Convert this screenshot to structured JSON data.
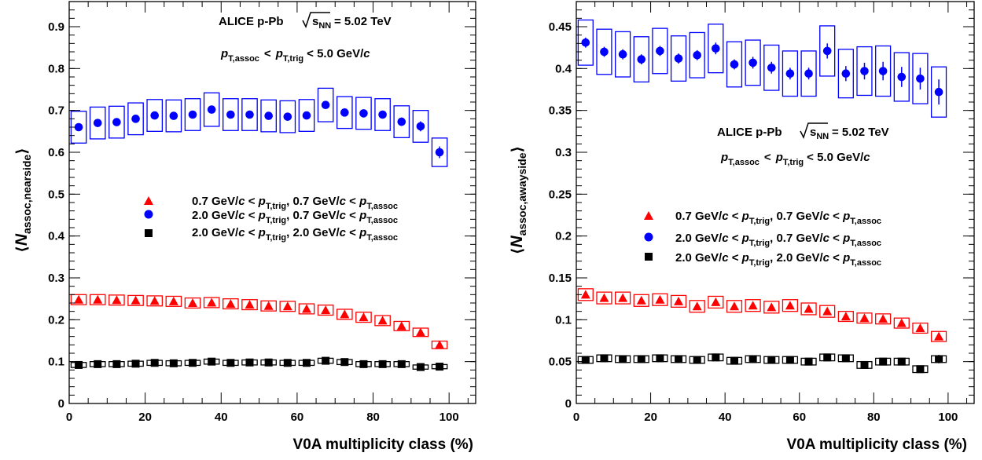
{
  "chart_data": [
    {
      "type": "scatter",
      "xlabel": "V0A multiplicity class (%)",
      "ylabel": "⟨N_assoc,nearside⟩",
      "ylabel_parts": {
        "main": "N",
        "sub": "assoc,nearside"
      },
      "xlim": [
        0,
        107
      ],
      "ylim": [
        0,
        0.96
      ],
      "xticks": [
        0,
        20,
        40,
        60,
        80,
        100
      ],
      "xtick_labels": [
        "0",
        "20",
        "40",
        "60",
        "80",
        "100"
      ],
      "yticks": [
        0,
        0.1,
        0.2,
        0.3,
        0.4,
        0.5,
        0.6,
        0.7,
        0.8,
        0.9
      ],
      "ytick_labels": [
        "0",
        "0.1",
        "0.2",
        "0.3",
        "0.4",
        "0.5",
        "0.6",
        "0.7",
        "0.8",
        "0.9"
      ],
      "annotation": {
        "experiment": "ALICE p-Pb",
        "energy_value": "= 5.02 TeV",
        "sqrt_s": "s",
        "sqrt_s_sub": "NN",
        "range_p1": "p",
        "range_p1_sub": "T,assoc",
        "range_lt": "<",
        "range_p2": "p",
        "range_p2_sub": "T,trig",
        "range_tail": "< 5.0 GeV/",
        "range_c": "c"
      },
      "legend": [
        {
          "a": "0.7 GeV/",
          "c1": "c",
          "b": " < ",
          "p": "p",
          "s1": "T,trig",
          "m": ", 0.7 GeV/",
          "c2": "c",
          "d": " < ",
          "p2": "p",
          "s2": "T,assoc"
        },
        {
          "a": "2.0 GeV/",
          "c1": "c",
          "b": " < ",
          "p": "p",
          "s1": "T,trig",
          "m": ", 0.7 GeV/",
          "c2": "c",
          "d": " < ",
          "p2": "p",
          "s2": "T,assoc"
        },
        {
          "a": "2.0 GeV/",
          "c1": "c",
          "b": " < ",
          "p": "p",
          "s1": "T,trig",
          "m": ", 2.0 GeV/",
          "c2": "c",
          "d": " < ",
          "p2": "p",
          "s2": "T,assoc"
        }
      ],
      "x": [
        2.5,
        7.5,
        12.5,
        17.5,
        22.5,
        27.5,
        32.5,
        37.5,
        42.5,
        47.5,
        52.5,
        57.5,
        62.5,
        67.5,
        72.5,
        77.5,
        82.5,
        87.5,
        92.5,
        97.5
      ],
      "series": [
        {
          "marker": "triangle",
          "color": "#ff0000",
          "values": [
            0.248,
            0.248,
            0.247,
            0.246,
            0.245,
            0.244,
            0.24,
            0.241,
            0.238,
            0.236,
            0.233,
            0.232,
            0.226,
            0.223,
            0.213,
            0.206,
            0.198,
            0.185,
            0.17,
            0.14
          ],
          "sys": [
            0.012,
            0.012,
            0.012,
            0.012,
            0.012,
            0.012,
            0.012,
            0.012,
            0.012,
            0.012,
            0.012,
            0.012,
            0.012,
            0.012,
            0.012,
            0.012,
            0.012,
            0.011,
            0.01,
            0.009
          ],
          "stat": [
            0.002,
            0.002,
            0.002,
            0.002,
            0.002,
            0.002,
            0.002,
            0.002,
            0.002,
            0.002,
            0.002,
            0.002,
            0.002,
            0.002,
            0.002,
            0.002,
            0.002,
            0.002,
            0.003,
            0.003
          ]
        },
        {
          "marker": "circle",
          "color": "#0000ff",
          "values": [
            0.66,
            0.67,
            0.672,
            0.68,
            0.688,
            0.687,
            0.69,
            0.702,
            0.69,
            0.69,
            0.687,
            0.685,
            0.688,
            0.713,
            0.695,
            0.693,
            0.69,
            0.673,
            0.662,
            0.6
          ],
          "sys": [
            0.038,
            0.038,
            0.038,
            0.038,
            0.038,
            0.038,
            0.038,
            0.04,
            0.038,
            0.038,
            0.038,
            0.038,
            0.038,
            0.04,
            0.038,
            0.038,
            0.038,
            0.038,
            0.038,
            0.034
          ],
          "stat": [
            0.006,
            0.006,
            0.006,
            0.006,
            0.006,
            0.006,
            0.006,
            0.007,
            0.006,
            0.006,
            0.006,
            0.006,
            0.006,
            0.008,
            0.007,
            0.007,
            0.008,
            0.01,
            0.012,
            0.014
          ]
        },
        {
          "marker": "square",
          "color": "#000000",
          "values": [
            0.092,
            0.094,
            0.094,
            0.095,
            0.097,
            0.096,
            0.097,
            0.1,
            0.097,
            0.098,
            0.098,
            0.097,
            0.097,
            0.102,
            0.099,
            0.094,
            0.094,
            0.094,
            0.087,
            0.088
          ],
          "sys": [
            0.006,
            0.006,
            0.006,
            0.006,
            0.006,
            0.006,
            0.006,
            0.006,
            0.006,
            0.006,
            0.006,
            0.006,
            0.006,
            0.006,
            0.006,
            0.006,
            0.006,
            0.006,
            0.005,
            0.005
          ],
          "stat": [
            0.002,
            0.002,
            0.002,
            0.002,
            0.002,
            0.002,
            0.002,
            0.002,
            0.002,
            0.002,
            0.002,
            0.002,
            0.002,
            0.002,
            0.002,
            0.002,
            0.002,
            0.003,
            0.004,
            0.004
          ]
        }
      ]
    },
    {
      "type": "scatter",
      "xlabel": "V0A multiplicity class (%)",
      "ylabel": "⟨N_assoc,awayside⟩",
      "ylabel_parts": {
        "main": "N",
        "sub": "assoc,awayside"
      },
      "xlim": [
        0,
        107
      ],
      "ylim": [
        0,
        0.48
      ],
      "xticks": [
        0,
        20,
        40,
        60,
        80,
        100
      ],
      "xtick_labels": [
        "0",
        "20",
        "40",
        "60",
        "80",
        "100"
      ],
      "yticks": [
        0,
        0.05,
        0.1,
        0.15,
        0.2,
        0.25,
        0.3,
        0.35,
        0.4,
        0.45
      ],
      "ytick_labels": [
        "0",
        "0.05",
        "0.1",
        "0.15",
        "0.2",
        "0.25",
        "0.3",
        "0.35",
        "0.4",
        "0.45"
      ],
      "annotation": {
        "experiment": "ALICE p-Pb",
        "energy_value": "= 5.02 TeV",
        "sqrt_s": "s",
        "sqrt_s_sub": "NN",
        "range_p1": "p",
        "range_p1_sub": "T,assoc",
        "range_lt": "<",
        "range_p2": "p",
        "range_p2_sub": "T,trig",
        "range_tail": "< 5.0 GeV/",
        "range_c": "c"
      },
      "legend": [
        {
          "a": "0.7 GeV/",
          "c1": "c",
          "b": " < ",
          "p": "p",
          "s1": "T,trig",
          "m": ", 0.7 GeV/",
          "c2": "c",
          "d": " < ",
          "p2": "p",
          "s2": "T,assoc"
        },
        {
          "a": "2.0 GeV/",
          "c1": "c",
          "b": " < ",
          "p": "p",
          "s1": "T,trig",
          "m": ", 0.7 GeV/",
          "c2": "c",
          "d": " < ",
          "p2": "p",
          "s2": "T,assoc"
        },
        {
          "a": "2.0 GeV/",
          "c1": "c",
          "b": " < ",
          "p": "p",
          "s1": "T,trig",
          "m": ", 2.0 GeV/",
          "c2": "c",
          "d": "  < ",
          "p2": "p",
          "s2": "T,assoc"
        }
      ],
      "x": [
        2.5,
        7.5,
        12.5,
        17.5,
        22.5,
        27.5,
        32.5,
        37.5,
        42.5,
        47.5,
        52.5,
        57.5,
        62.5,
        67.5,
        72.5,
        77.5,
        82.5,
        87.5,
        92.5,
        97.5
      ],
      "series": [
        {
          "marker": "triangle",
          "color": "#ff0000",
          "values": [
            0.13,
            0.126,
            0.126,
            0.123,
            0.124,
            0.122,
            0.116,
            0.121,
            0.116,
            0.117,
            0.115,
            0.117,
            0.113,
            0.11,
            0.104,
            0.102,
            0.101,
            0.096,
            0.09,
            0.08
          ],
          "sys": [
            0.007,
            0.007,
            0.007,
            0.007,
            0.007,
            0.007,
            0.007,
            0.007,
            0.007,
            0.007,
            0.007,
            0.007,
            0.007,
            0.007,
            0.006,
            0.006,
            0.006,
            0.006,
            0.006,
            0.006
          ],
          "stat": [
            0.003,
            0.002,
            0.002,
            0.002,
            0.002,
            0.002,
            0.002,
            0.002,
            0.002,
            0.002,
            0.002,
            0.002,
            0.002,
            0.002,
            0.002,
            0.002,
            0.002,
            0.002,
            0.002,
            0.003
          ]
        },
        {
          "marker": "circle",
          "color": "#0000ff",
          "values": [
            0.431,
            0.42,
            0.417,
            0.411,
            0.421,
            0.412,
            0.416,
            0.424,
            0.405,
            0.407,
            0.401,
            0.394,
            0.394,
            0.421,
            0.394,
            0.397,
            0.397,
            0.39,
            0.388,
            0.372
          ],
          "sys": [
            0.027,
            0.027,
            0.027,
            0.027,
            0.027,
            0.027,
            0.027,
            0.029,
            0.027,
            0.027,
            0.027,
            0.027,
            0.027,
            0.03,
            0.029,
            0.029,
            0.03,
            0.029,
            0.03,
            0.03
          ],
          "stat": [
            0.006,
            0.006,
            0.006,
            0.006,
            0.006,
            0.006,
            0.006,
            0.007,
            0.006,
            0.007,
            0.007,
            0.007,
            0.007,
            0.009,
            0.009,
            0.01,
            0.011,
            0.012,
            0.013,
            0.015
          ]
        },
        {
          "marker": "square",
          "color": "#000000",
          "values": [
            0.052,
            0.054,
            0.053,
            0.053,
            0.054,
            0.053,
            0.052,
            0.055,
            0.051,
            0.053,
            0.052,
            0.052,
            0.05,
            0.055,
            0.054,
            0.046,
            0.05,
            0.05,
            0.041,
            0.053
          ],
          "sys": [
            0.004,
            0.004,
            0.004,
            0.004,
            0.004,
            0.004,
            0.004,
            0.004,
            0.004,
            0.004,
            0.004,
            0.004,
            0.004,
            0.004,
            0.004,
            0.004,
            0.004,
            0.004,
            0.004,
            0.004
          ],
          "stat": [
            0.002,
            0.002,
            0.002,
            0.002,
            0.002,
            0.002,
            0.002,
            0.002,
            0.002,
            0.002,
            0.002,
            0.002,
            0.002,
            0.002,
            0.002,
            0.003,
            0.003,
            0.003,
            0.003,
            0.005
          ]
        }
      ]
    }
  ]
}
